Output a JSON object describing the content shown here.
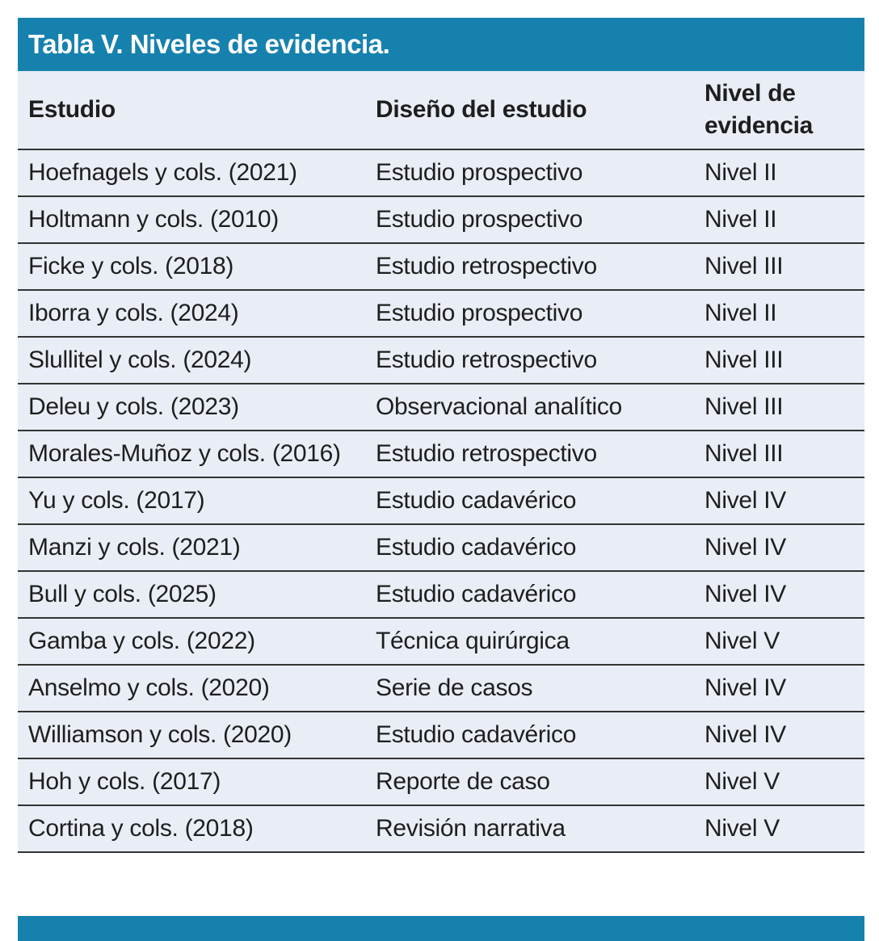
{
  "title": "Tabla V. Niveles de evidencia.",
  "colors": {
    "accent_teal": "#1781AE",
    "table_background": "#E9EDF6",
    "rule": "#333333",
    "text": "#1E1E1E",
    "title_text": "#FFFFFF"
  },
  "table": {
    "columns": [
      "Estudio",
      "Diseño del estudio",
      "Nivel de evidencia"
    ],
    "rows": [
      {
        "study": "Hoefnagels y cols. (2021)",
        "design": "Estudio prospectivo",
        "level": "Nivel II"
      },
      {
        "study": "Holtmann y cols. (2010)",
        "design": "Estudio prospectivo",
        "level": "Nivel II"
      },
      {
        "study": "Ficke y cols. (2018)",
        "design": "Estudio retrospectivo",
        "level": "Nivel III"
      },
      {
        "study": "Iborra y cols. (2024)",
        "design": "Estudio prospectivo",
        "level": "Nivel II"
      },
      {
        "study": "Slullitel y cols. (2024)",
        "design": "Estudio retrospectivo",
        "level": "Nivel III"
      },
      {
        "study": "Deleu y cols. (2023)",
        "design": "Observacional analítico",
        "level": "Nivel III"
      },
      {
        "study": "Morales-Muñoz y cols. (2016)",
        "design": "Estudio retrospectivo",
        "level": "Nivel III"
      },
      {
        "study": "Yu y cols. (2017)",
        "design": "Estudio cadavérico",
        "level": "Nivel IV"
      },
      {
        "study": "Manzi y cols. (2021)",
        "design": "Estudio cadavérico",
        "level": "Nivel IV"
      },
      {
        "study": "Bull y cols. (2025)",
        "design": "Estudio cadavérico",
        "level": "Nivel IV"
      },
      {
        "study": "Gamba y cols. (2022)",
        "design": "Técnica quirúrgica",
        "level": "Nivel V"
      },
      {
        "study": "Anselmo y cols. (2020)",
        "design": "Serie de casos",
        "level": "Nivel IV"
      },
      {
        "study": "Williamson y cols. (2020)",
        "design": "Estudio cadavérico",
        "level": "Nivel IV"
      },
      {
        "study": "Hoh y cols. (2017)",
        "design": "Reporte de caso",
        "level": "Nivel V"
      },
      {
        "study": "Cortina y cols. (2018)",
        "design": "Revisión narrativa",
        "level": "Nivel V"
      }
    ]
  }
}
